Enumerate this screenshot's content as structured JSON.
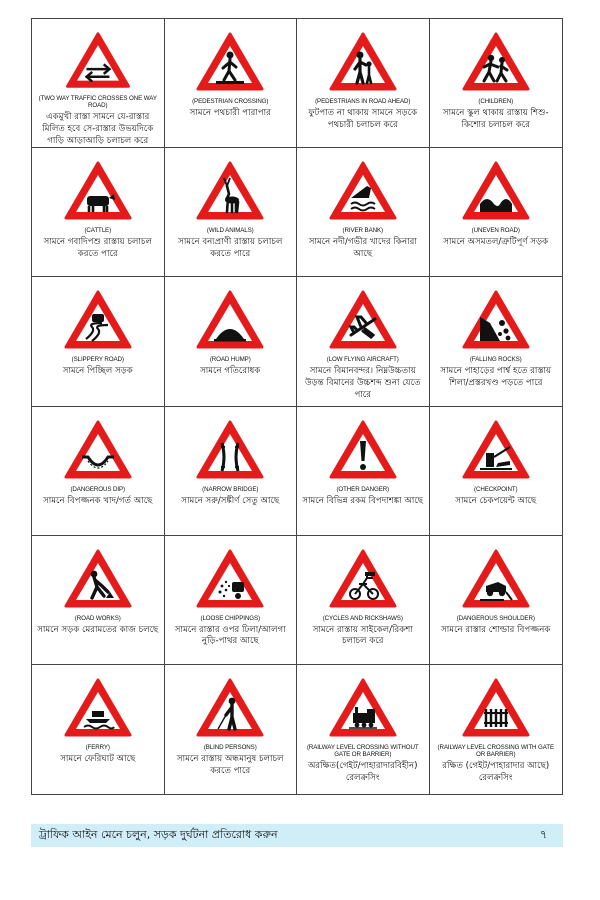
{
  "colors": {
    "sign_border": "#e41b1b",
    "footer_bg": "#cfeef7",
    "grid_line": "#444444"
  },
  "signs": [
    {
      "icon": "two-way-arrows-icon",
      "en": "(TWO WAY TRAFFIC CROSSES ONE WAY ROAD)",
      "bn": "একমুখী রাস্তা সামনে যে-রাস্তার মিলিত হবে সে-রাস্তার উভয়দিকে গাড়ি আড়াআড়ি চলাচল করে"
    },
    {
      "icon": "pedestrian-crossing-icon",
      "en": "(PEDESTRIAN CROSSING)",
      "bn": "সামনে পথচারী পারাপার"
    },
    {
      "icon": "pedestrians-icon",
      "en": "(PEDESTRIANS IN ROAD AHEAD)",
      "bn": "ফুটপাত না থাকায় সামনে সড়কে পথচারী চলাচল করে"
    },
    {
      "icon": "children-icon",
      "en": "(CHILDREN)",
      "bn": "সামনে স্কুল থাকায় রাস্তায় শিশু-কিশোর চলাচল করে"
    },
    {
      "icon": "cattle-icon",
      "en": "(CATTLE)",
      "bn": "সামনে গবাদিপশু রাস্তায় চলাচল করতে পারে"
    },
    {
      "icon": "deer-icon",
      "en": "(WILD ANIMALS)",
      "bn": "সামনে বন্যপ্রাণী রাস্তায় চলাচল করতে পারে"
    },
    {
      "icon": "river-bank-icon",
      "en": "(RIVER BANK)",
      "bn": "সামনে নদী/গভীর খাদের কিনারা আছে"
    },
    {
      "icon": "uneven-road-icon",
      "en": "(UNEVEN ROAD)",
      "bn": "সামনে অসমতল/ত্রুটিপূর্ণ সড়ক"
    },
    {
      "icon": "slippery-road-icon",
      "en": "(SLIPPERY ROAD)",
      "bn": "সামনে পিচ্ছিল সড়ক"
    },
    {
      "icon": "road-hump-icon",
      "en": "(ROAD HUMP)",
      "bn": "সামনে গতিরোধক"
    },
    {
      "icon": "aircraft-icon",
      "en": "(LOW FLYING AIRCRAFT)",
      "bn": "সামনে বিমানবন্দর। নিম্নউচ্চতায় উড়ন্ত বিমানের উচ্চশব্দ শুনা যেতে পারে"
    },
    {
      "icon": "falling-rocks-icon",
      "en": "(FALLING ROCKS)",
      "bn": "সামনে পাহাড়ের পার্শ্ব হতে রাস্তায় শিলা/প্রস্তরখণ্ড পড়তে পারে"
    },
    {
      "icon": "dip-icon",
      "en": "(DANGEROUS DIP)",
      "bn": "সামনে বিপজ্জনক খাদ/গর্ত আছে"
    },
    {
      "icon": "narrow-bridge-icon",
      "en": "(NARROW BRIDGE)",
      "bn": "সামনে সরু/সঙ্কীর্ণ সেতু আছে"
    },
    {
      "icon": "exclamation-icon",
      "en": "(OTHER DANGER)",
      "bn": "সামনে বিভিন্ন রকম বিপদাশঙ্কা আছে"
    },
    {
      "icon": "checkpoint-icon",
      "en": "(CHECKPOINT)",
      "bn": "সামনে চেকপয়েন্ট আছে"
    },
    {
      "icon": "road-works-icon",
      "en": "(ROAD WORKS)",
      "bn": "সামনে সড়ক মেরামতের কাজ চলছে"
    },
    {
      "icon": "loose-chippings-icon",
      "en": "(LOOSE CHIPPINGS)",
      "bn": "সামনে রাস্তার ওপর ঢিলা/আলগা নুড়ি-পাথর আছে"
    },
    {
      "icon": "rickshaw-icon",
      "en": "(CYCLES AND RICKSHAWS)",
      "bn": "সামনে রাস্তায় সাইকেল/রিকশা চলাচল করে"
    },
    {
      "icon": "dangerous-shoulder-icon",
      "en": "(DANGEROUS SHOULDER)",
      "bn": "সামনে রাস্তার শোল্ডার বিপজ্জনক"
    },
    {
      "icon": "ferry-icon",
      "en": "(FERRY)",
      "bn": "সামনে ফেরিঘাট আছে"
    },
    {
      "icon": "blind-person-icon",
      "en": "(BLIND PERSONS)",
      "bn": "সামনে রাস্তায় অন্ধমানুষ চলাচল করতে পারে"
    },
    {
      "icon": "train-icon",
      "en": "(RAILWAY LEVEL CROSSING WITHOUT GATE OR BARRIER)",
      "bn": "অরক্ষিত(গেইট/পাহারাদারবিহীন) রেলক্রসিং"
    },
    {
      "icon": "gate-icon",
      "en": "(RAILWAY LEVEL CROSSING WITH GATE OR BARRIER)",
      "bn": "রক্ষিত (গেইট/পাহারাদার আছে) রেলক্রসিং"
    }
  ],
  "footer": {
    "text": "ট্রাফিক আইন মেনে চলুন, সড়ক দুর্ঘটনা প্রতিরোধ করুন",
    "page_number": "৭"
  }
}
